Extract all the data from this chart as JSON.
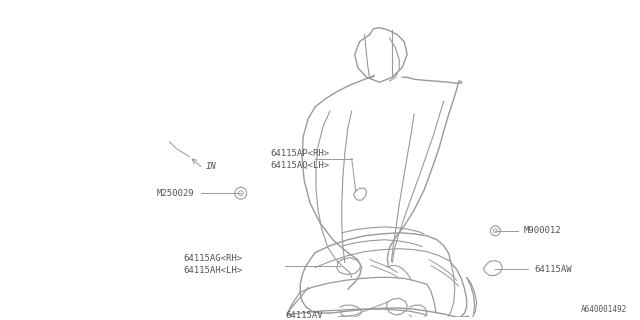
{
  "bg_color": "#ffffff",
  "line_color": "#999999",
  "text_color": "#555555",
  "fig_width": 6.4,
  "fig_height": 3.2,
  "dpi": 100,
  "labels": {
    "ap_aq": [
      "64115AP<RH>",
      "64115AQ<LH>"
    ],
    "m250029": "M250029",
    "ag_ah": [
      "64115AG<RH>",
      "64115AH<LH>"
    ],
    "av": "64115AV",
    "aw": "64115AW",
    "m900012": "M900012",
    "in_label": "IN",
    "diagram_id": "A640001492"
  },
  "font_size": 6.5,
  "small_font": 5.5
}
